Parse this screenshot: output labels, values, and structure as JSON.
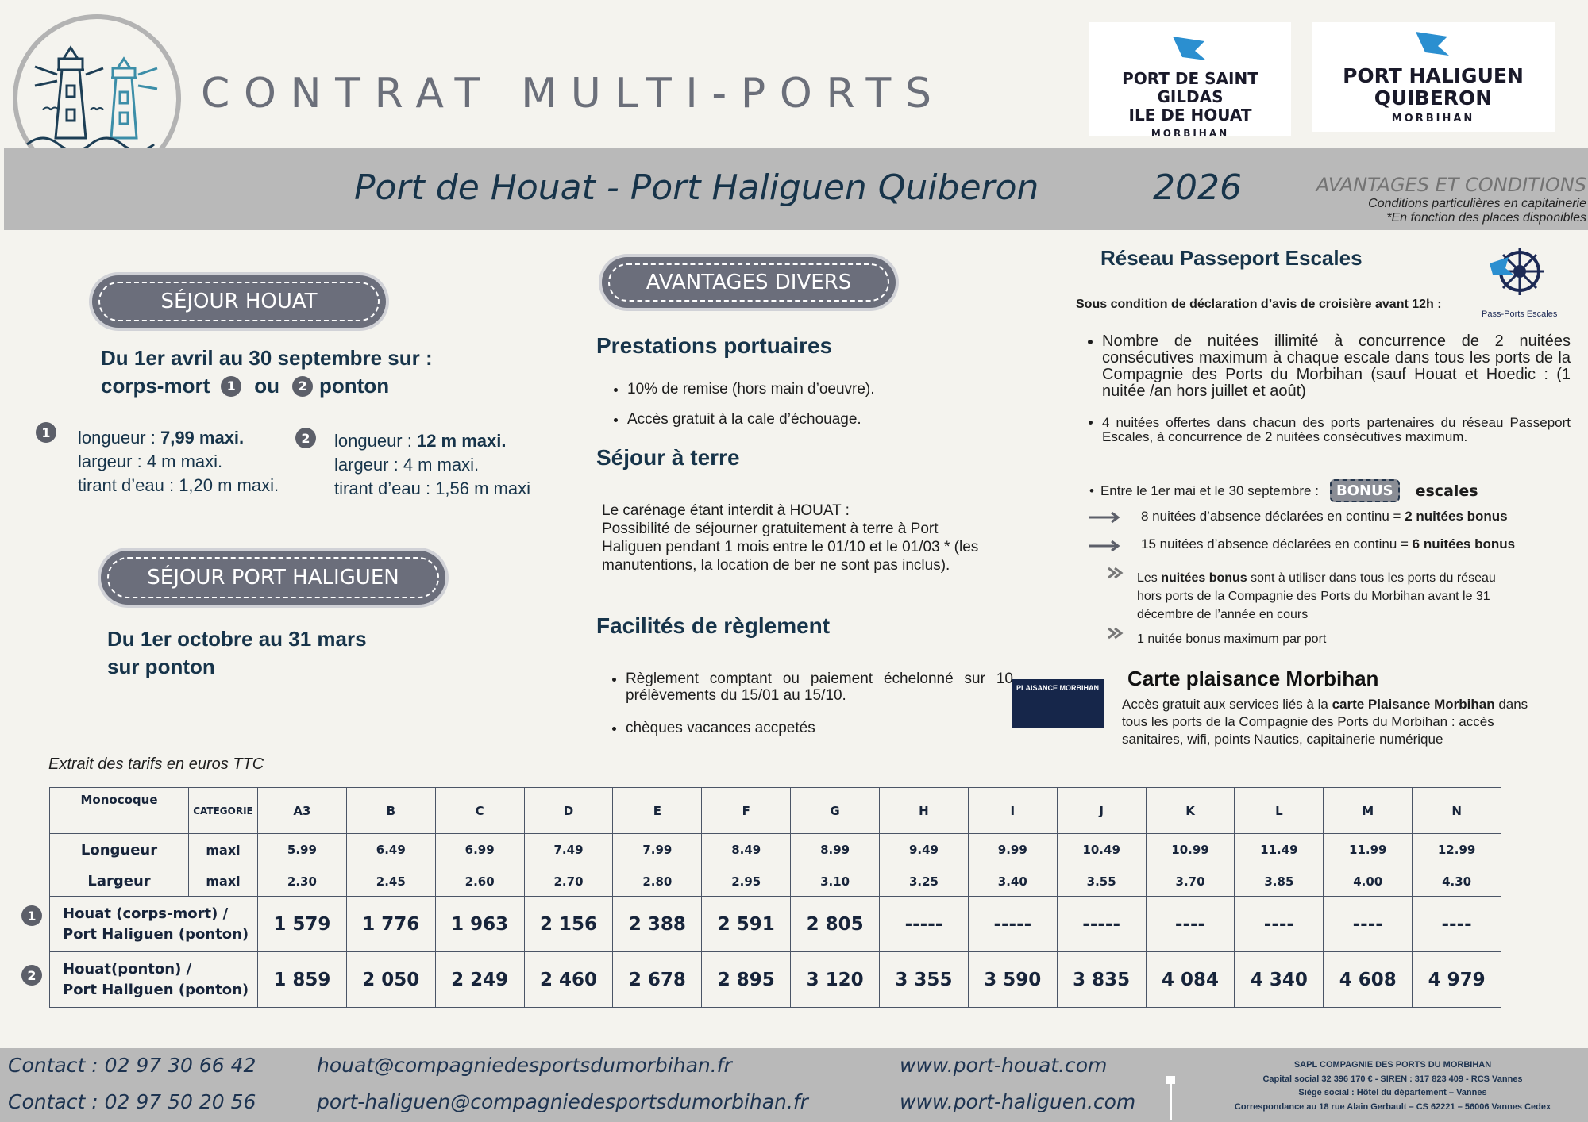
{
  "header": {
    "title": "CONTRAT MULTI-PORTS",
    "logo_houat": {
      "lines": [
        "PORT DE SAINT GILDAS",
        "ILE DE HOUAT"
      ],
      "region": "MORBIHAN"
    },
    "logo_haliguen": {
      "lines": [
        "PORT HALIGUEN",
        "QUIBERON"
      ],
      "region": "MORBIHAN"
    }
  },
  "banner": {
    "title": "Port de Houat - Port Haliguen Quiberon",
    "year": "2026",
    "conditions_title": "AVANTAGES ET CONDITIONS",
    "notes": [
      "Conditions particulières en capitainerie",
      "*En fonction des places disponibles"
    ]
  },
  "sejour_houat": {
    "heading": "SÉJOUR HOUAT",
    "period": "Du 1er avril au 30 septembre sur :",
    "mooring": {
      "first": "corps-mort",
      "marker1": "1",
      "or": "ou",
      "marker2": "2",
      "second": "ponton"
    },
    "options": [
      {
        "marker": "1",
        "lines": [
          [
            {
              "text": "longueur : "
            },
            {
              "bold": "7,99 maxi."
            }
          ],
          [
            {
              "text": "largeur : 4 m maxi."
            }
          ],
          [
            {
              "text": "tirant d’eau : 1,20 m maxi."
            }
          ]
        ]
      },
      {
        "marker": "2",
        "lines": [
          [
            {
              "text": "longueur : "
            },
            {
              "bold": "12 m maxi."
            }
          ],
          [
            {
              "text": " largeur : 4 m maxi."
            }
          ],
          [
            {
              "text": " tirant d’eau : 1,56 m maxi"
            }
          ]
        ]
      }
    ]
  },
  "sejour_haliguen": {
    "heading": "SÉJOUR PORT HALIGUEN",
    "period": [
      "Du 1er octobre au 31 mars",
      "sur ponton"
    ]
  },
  "avantages": {
    "heading": "AVANTAGES DIVERS",
    "prestations": {
      "title": "Prestations portuaires",
      "items": [
        "10% de remise (hors main d’oeuvre).",
        "Accès gratuit à la cale d’échouage."
      ]
    },
    "sejour_terre": {
      "title": "Séjour à terre",
      "paragraphs": [
        "Le carénage étant interdit à HOUAT :",
        "Possibilité de séjourner gratuitement à terre à Port Haliguen pendant 1 mois entre le 01/10 et le 01/03 * (les manutentions, la location de ber ne sont pas inclus)."
      ]
    },
    "reglement": {
      "title": "Facilités de règlement",
      "items": [
        "Règlement comptant ou paiement échelonné sur 10 prélèvements du 15/01 au 15/10.",
        "chèques vacances accpetés"
      ]
    }
  },
  "passeport": {
    "title": "Réseau Passeport Escales",
    "logo_text": "Pass-Ports Escales",
    "condition": "Sous condition de déclaration d’avis de croisière avant 12h :",
    "items": [
      "Nombre de nuitées illimité à concurrence de 2 nuitées consécutives maximum à chaque escale dans tous les ports de la Compagnie des Ports du Morbihan (sauf Houat et Hoedic : (1 nuitée /an hors juillet et août)",
      "4 nuitées offertes dans chacun des ports partenaires du réseau Passeport Escales, à concurrence de 2 nuitées consécutives maximum."
    ],
    "bonus_period": "Entre le 1er mai et le 30 septembre :",
    "bonus_badge": "BONUS",
    "bonus_word": "escales",
    "arrows": [
      [
        {
          "text": "8 nuitées d’absence déclarées en continu = "
        },
        {
          "bold": "2 nuitées bonus"
        }
      ],
      [
        {
          "text": "15 nuitées d’absence déclarées en continu = "
        },
        {
          "bold": "6 nuitées bonus"
        }
      ]
    ],
    "notes": [
      [
        {
          "text": "Les "
        },
        {
          "bold": "nuitées bonus"
        },
        {
          "text": " sont à utiliser dans tous les ports du réseau hors ports de la Compagnie des Ports du Morbihan avant le 31 décembre de l’année en cours"
        }
      ],
      [
        {
          "text": "1 nuitée bonus maximum par port"
        }
      ]
    ]
  },
  "carte": {
    "image_text": "PLAISANCE MORBIHAN",
    "title": "Carte plaisance Morbihan",
    "text": [
      {
        "text": "Accès gratuit aux services liés à la "
      },
      {
        "bold": "carte Plaisance Morbihan"
      },
      {
        "text": " dans tous les ports de la Compagnie des Ports du Morbihan : accès sanitaires, wifi, points Nautics, capitainerie numérique"
      }
    ]
  },
  "table": {
    "caption": "Extrait des tarifs en euros TTC",
    "columns": [
      "Monocoque",
      "CATEGORIE",
      "A3",
      "B",
      "C",
      "D",
      "E",
      "F",
      "G",
      "H",
      "I",
      "J",
      "K",
      "L",
      "M",
      "N"
    ],
    "dimension_rows": [
      {
        "label": "Longueur",
        "unit": "maxi",
        "values": [
          "5.99",
          "6.49",
          "6.99",
          "7.49",
          "7.99",
          "8.49",
          "8.99",
          "9.49",
          "9.99",
          "10.49",
          "10.99",
          "11.49",
          "11.99",
          "12.99"
        ]
      },
      {
        "label": "Largeur",
        "unit": "maxi",
        "values": [
          "2.30",
          "2.45",
          "2.60",
          "2.70",
          "2.80",
          "2.95",
          "3.10",
          "3.25",
          "3.40",
          "3.55",
          "3.70",
          "3.85",
          "4.00",
          "4.30"
        ]
      }
    ],
    "price_rows": [
      {
        "marker": "1",
        "label": [
          "Houat (corps-mort) /",
          "Port Haliguen (ponton)"
        ],
        "values": [
          "1 579",
          "1 776",
          "1 963",
          "2 156",
          "2 388",
          "2 591",
          "2 805",
          "-----",
          "-----",
          "-----",
          "----",
          "----",
          "----",
          "----"
        ]
      },
      {
        "marker": "2",
        "label": [
          "Houat(ponton) /",
          "Port Haliguen (ponton)"
        ],
        "values": [
          "1 859",
          "2 050",
          "2 249",
          "2 460",
          "2 678",
          "2 895",
          "3 120",
          "3 355",
          "3 590",
          "3 835",
          "4 084",
          "4 340",
          "4 608",
          "4 979"
        ]
      }
    ]
  },
  "footer": {
    "contacts": [
      {
        "phone": "Contact : 02 97 30 66 42",
        "email": "houat@compagniedesportsdumorbihan.fr",
        "web": "www.port-houat.com"
      },
      {
        "phone": "Contact : 02 97 50 20 56",
        "email": "port-haliguen@compagniedesportsdumorbihan.fr",
        "web": "www.port-haliguen.com"
      }
    ],
    "legal": [
      "SAPL COMPAGNIE DES PORTS DU MORBIHAN",
      "Capital social 32 396 170 € - SIREN : 317 823 409 - RCS Vannes",
      "Siège social : Hôtel du département – Vannes",
      "Correspondance au 18 rue Alain Gerbault – CS 62221 – 56006 Vannes Cedex"
    ]
  }
}
